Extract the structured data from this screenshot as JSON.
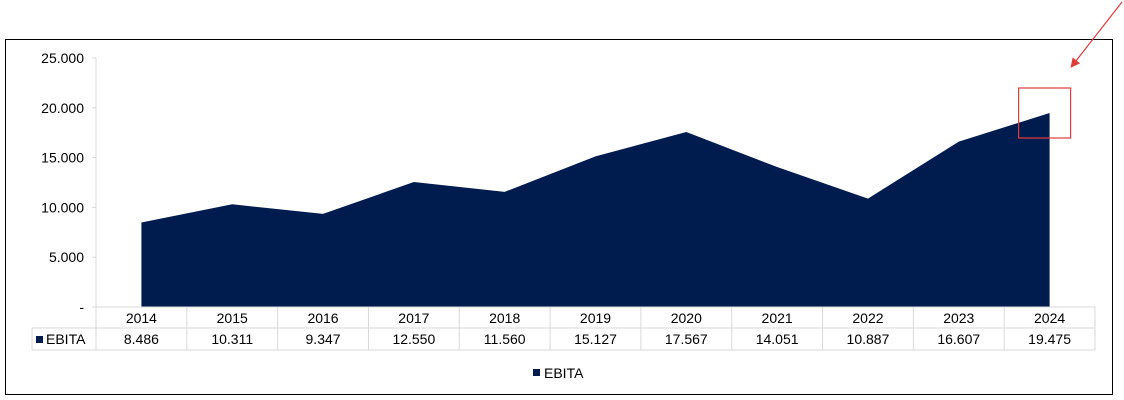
{
  "colors": {
    "series": "#001c4f",
    "grid": "#d9d9d9",
    "highlight": "#e03c3c",
    "frame": "#000000"
  },
  "chart_data": {
    "type": "area",
    "categories": [
      "2014",
      "2015",
      "2016",
      "2017",
      "2018",
      "2019",
      "2020",
      "2021",
      "2022",
      "2023",
      "2024"
    ],
    "series": [
      {
        "name": "EBITA",
        "values": [
          8486,
          10311,
          9347,
          12550,
          11560,
          15127,
          17567,
          14051,
          10887,
          16607,
          19475
        ],
        "labels": [
          "8.486",
          "10.311",
          "9.347",
          "12.550",
          "11.560",
          "15.127",
          "17.567",
          "14.051",
          "10.887",
          "16.607",
          "19.475"
        ]
      }
    ],
    "y_ticks": [
      {
        "value": 25000,
        "label": "25.000"
      },
      {
        "value": 20000,
        "label": "20.000"
      },
      {
        "value": 15000,
        "label": "15.000"
      },
      {
        "value": 10000,
        "label": "10.000"
      },
      {
        "value": 5000,
        "label": "5.000"
      },
      {
        "value": 0,
        "label": "-"
      }
    ],
    "ylim": [
      0,
      25000
    ],
    "grid": false,
    "data_table": true,
    "legend": {
      "position": "bottom",
      "entries": [
        "EBITA"
      ]
    },
    "annotations": [
      {
        "type": "highlight-box",
        "category": "2024"
      },
      {
        "type": "arrow",
        "points_to": "2024"
      }
    ]
  }
}
